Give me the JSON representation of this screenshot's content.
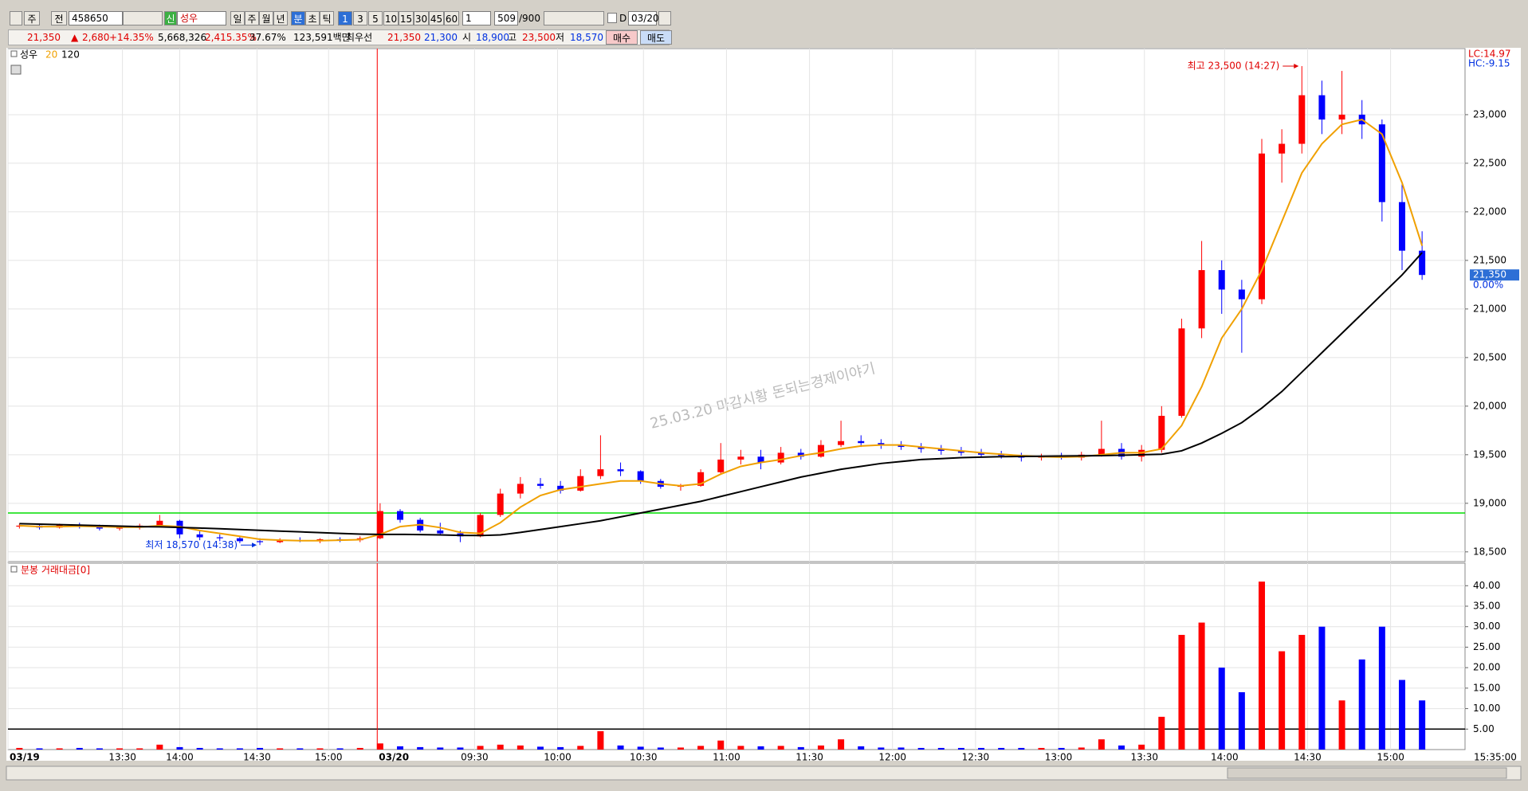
{
  "toolbar": {
    "market": "주",
    "mode": "전",
    "code": "458650",
    "badge": "신",
    "name": "성우",
    "periods": [
      "일",
      "주",
      "월",
      "년",
      "분",
      "초",
      "틱"
    ],
    "intervals": [
      "1",
      "3",
      "5",
      "10",
      "15",
      "30",
      "45",
      "60"
    ],
    "unit": "1",
    "count": "509",
    "max": "/900",
    "d_label": "D",
    "date": "03/20"
  },
  "quote": {
    "price": "21,350",
    "arrow": "▲",
    "change": "2,680",
    "change_pct": "+14.35%",
    "volume": "5,668,326",
    "volume_ratio": "2,415.35%",
    "turnover": "37.67%",
    "amount": "123,591백만",
    "best_label": "최우선",
    "ask": "21,350",
    "bid": "21,300",
    "open_label": "시",
    "open": "18,900",
    "high_label": "고",
    "high": "23,500",
    "low_label": "저",
    "low": "18,570",
    "buy": "매수",
    "sell": "매도"
  },
  "chart_data": [
    {
      "type": "candlestick",
      "name": "성우",
      "up_color": "#ff0000",
      "down_color": "#0000ff",
      "x": [
        4,
        11,
        18,
        25,
        32,
        39,
        46,
        53,
        60,
        67,
        74,
        81,
        88,
        95,
        102,
        109,
        116,
        123,
        130,
        137,
        144,
        151,
        158,
        165,
        172,
        179,
        186,
        193,
        200,
        207,
        214,
        221,
        228,
        235,
        242,
        249,
        256,
        263,
        270,
        277,
        284,
        291,
        298,
        305,
        312,
        319,
        326,
        333,
        340,
        347,
        354,
        361,
        368,
        375,
        382,
        389,
        396,
        403,
        410,
        417,
        424,
        431,
        438,
        445,
        452,
        459,
        466,
        473,
        480,
        487,
        494
      ],
      "open": [
        18760,
        18770,
        18750,
        18780,
        18760,
        18740,
        18750,
        18770,
        18820,
        18680,
        18650,
        18640,
        18610,
        18600,
        18620,
        18610,
        18630,
        18620,
        18640,
        18920,
        18830,
        18720,
        18690,
        18660,
        18880,
        19100,
        19200,
        19180,
        19130,
        19280,
        19350,
        19330,
        19230,
        19170,
        19180,
        19320,
        19450,
        19480,
        19420,
        19520,
        19480,
        19600,
        19640,
        19620,
        19600,
        19580,
        19560,
        19540,
        19520,
        19500,
        19490,
        19470,
        19480,
        19470,
        19500,
        19560,
        19480,
        19550,
        19900,
        20800,
        21400,
        21200,
        21100,
        22600,
        22700,
        23200,
        22950,
        23000,
        22900,
        22100,
        21600
      ],
      "high": [
        18790,
        18780,
        18790,
        18800,
        18780,
        18770,
        18790,
        18880,
        18830,
        18720,
        18680,
        18660,
        18640,
        18640,
        18650,
        18640,
        18650,
        18660,
        19000,
        18940,
        18850,
        18800,
        18720,
        18900,
        19150,
        19270,
        19260,
        19230,
        19350,
        19700,
        19420,
        19340,
        19250,
        19200,
        19350,
        19620,
        19550,
        19550,
        19580,
        19560,
        19650,
        19850,
        19700,
        19660,
        19640,
        19620,
        19600,
        19580,
        19560,
        19540,
        19520,
        19510,
        19520,
        19530,
        19850,
        19620,
        19600,
        20000,
        20900,
        21700,
        21500,
        21300,
        22750,
        22850,
        23500,
        23350,
        23450,
        23150,
        22950,
        22300,
        21800
      ],
      "low": [
        18740,
        18730,
        18740,
        18740,
        18720,
        18720,
        18730,
        18760,
        18640,
        18620,
        18610,
        18590,
        18570,
        18590,
        18600,
        18590,
        18600,
        18600,
        18630,
        18800,
        18700,
        18670,
        18600,
        18650,
        18860,
        19050,
        19150,
        19100,
        19120,
        19250,
        19280,
        19200,
        19150,
        19130,
        19170,
        19300,
        19400,
        19350,
        19400,
        19450,
        19470,
        19580,
        19580,
        19560,
        19550,
        19520,
        19500,
        19490,
        19480,
        19460,
        19430,
        19440,
        19450,
        19440,
        19480,
        19450,
        19430,
        19520,
        19880,
        20700,
        20950,
        20550,
        21050,
        22300,
        22600,
        22800,
        22800,
        22750,
        21900,
        21400,
        21300
      ],
      "close": [
        18770,
        18750,
        18780,
        18760,
        18740,
        18750,
        18770,
        18820,
        18680,
        18650,
        18640,
        18610,
        18600,
        18620,
        18610,
        18630,
        18620,
        18640,
        18920,
        18830,
        18720,
        18690,
        18660,
        18880,
        19100,
        19200,
        19180,
        19130,
        19280,
        19350,
        19330,
        19230,
        19170,
        19180,
        19320,
        19450,
        19480,
        19420,
        19520,
        19480,
        19600,
        19640,
        19620,
        19600,
        19580,
        19560,
        19540,
        19520,
        19500,
        19490,
        19470,
        19480,
        19470,
        19500,
        19560,
        19480,
        19550,
        19900,
        20800,
        21400,
        21200,
        21100,
        22600,
        22700,
        23200,
        22950,
        23000,
        22900,
        22100,
        21600,
        21350
      ],
      "series": [
        {
          "name": "20",
          "color": "#f0a000",
          "values": [
            18770,
            18760,
            18760,
            18765,
            18760,
            18755,
            18755,
            18770,
            18760,
            18720,
            18690,
            18660,
            18630,
            18620,
            18615,
            18615,
            18620,
            18625,
            18680,
            18760,
            18780,
            18750,
            18700,
            18690,
            18800,
            18960,
            19080,
            19140,
            19170,
            19200,
            19230,
            19230,
            19200,
            19180,
            19200,
            19300,
            19380,
            19420,
            19450,
            19490,
            19520,
            19560,
            19590,
            19600,
            19600,
            19580,
            19560,
            19540,
            19520,
            19505,
            19490,
            19480,
            19475,
            19480,
            19500,
            19520,
            19520,
            19560,
            19800,
            20200,
            20700,
            21000,
            21400,
            21900,
            22400,
            22700,
            22900,
            22950,
            22800,
            22300,
            21650
          ]
        },
        {
          "name": "120",
          "color": "#000000",
          "values": [
            18790,
            18785,
            18780,
            18775,
            18770,
            18765,
            18760,
            18758,
            18752,
            18745,
            18738,
            18730,
            18722,
            18714,
            18706,
            18698,
            18690,
            18683,
            18680,
            18680,
            18678,
            18675,
            18670,
            18668,
            18675,
            18700,
            18730,
            18760,
            18790,
            18820,
            18860,
            18900,
            18940,
            18980,
            19020,
            19070,
            19120,
            19170,
            19220,
            19270,
            19310,
            19350,
            19380,
            19410,
            19430,
            19450,
            19460,
            19470,
            19475,
            19480,
            19482,
            19484,
            19486,
            19488,
            19490,
            19495,
            19500,
            19505,
            19540,
            19620,
            19720,
            19830,
            19980,
            20150,
            20350,
            20550,
            20750,
            20950,
            21150,
            21350,
            21580
          ]
        }
      ],
      "xlim": [
        0,
        509
      ],
      "ylim": [
        18400,
        23680
      ],
      "yticks": [
        {
          "value": 18500,
          "label": "18,500"
        },
        {
          "value": 19000,
          "label": "19,000"
        },
        {
          "value": 19500,
          "label": "19,500"
        },
        {
          "value": 20000,
          "label": "20,000"
        },
        {
          "value": 20500,
          "label": "20,500"
        },
        {
          "value": 21000,
          "label": "21,000"
        },
        {
          "value": 21500,
          "label": "21,500"
        },
        {
          "value": 22000,
          "label": "22,000"
        },
        {
          "value": 22500,
          "label": "22,500"
        },
        {
          "value": 23000,
          "label": "23,000"
        }
      ],
      "grid": true,
      "hlines": [
        {
          "value": 18900,
          "color": "#00dd00"
        }
      ],
      "vlines": [
        {
          "value": 129,
          "color": "#ff0000"
        }
      ],
      "high_label": "최고 23,500 (14:27)",
      "low_label": "최저 18,570 (14:38)",
      "watermark": "25.03.20 마감시황 돈되는경제이야기",
      "right_labels": [
        "LC:14.97",
        "HC:-9.15"
      ],
      "last_label": "21,350",
      "last_change_label": "0.00%"
    },
    {
      "type": "bar",
      "title": "분봉 거래대금[0]",
      "x": [
        4,
        11,
        18,
        25,
        32,
        39,
        46,
        53,
        60,
        67,
        74,
        81,
        88,
        95,
        102,
        109,
        116,
        123,
        130,
        137,
        144,
        151,
        158,
        165,
        172,
        179,
        186,
        193,
        200,
        207,
        214,
        221,
        228,
        235,
        242,
        249,
        256,
        263,
        270,
        277,
        284,
        291,
        298,
        305,
        312,
        319,
        326,
        333,
        340,
        347,
        354,
        361,
        368,
        375,
        382,
        389,
        396,
        403,
        410,
        417,
        424,
        431,
        438,
        445,
        452,
        459,
        466,
        473,
        480,
        487,
        494
      ],
      "values": [
        0.4,
        0.3,
        0.3,
        0.4,
        0.3,
        0.3,
        0.3,
        1.2,
        0.6,
        0.4,
        0.3,
        0.3,
        0.4,
        0.3,
        0.3,
        0.3,
        0.3,
        0.4,
        1.5,
        0.8,
        0.6,
        0.5,
        0.5,
        0.9,
        1.2,
        1.0,
        0.7,
        0.6,
        0.9,
        4.5,
        1.0,
        0.7,
        0.5,
        0.5,
        0.9,
        2.2,
        0.9,
        0.8,
        0.9,
        0.6,
        1.0,
        2.5,
        0.8,
        0.5,
        0.5,
        0.4,
        0.4,
        0.4,
        0.4,
        0.4,
        0.4,
        0.4,
        0.4,
        0.5,
        2.5,
        1.0,
        1.2,
        8.0,
        28.0,
        31.0,
        20.0,
        14.0,
        41.0,
        24.0,
        28.0,
        30.0,
        12.0,
        22.0,
        30.0,
        17.0,
        12.0
      ],
      "xlim": [
        0,
        509
      ],
      "ylim": [
        0,
        45.5
      ],
      "yticks": [
        {
          "value": 5,
          "label": "5.00"
        },
        {
          "value": 10,
          "label": "10.00"
        },
        {
          "value": 15,
          "label": "15.00"
        },
        {
          "value": 20,
          "label": "20.00"
        },
        {
          "value": 25,
          "label": "25.00"
        },
        {
          "value": 30,
          "label": "30.00"
        },
        {
          "value": 35,
          "label": "35.00"
        },
        {
          "value": 40,
          "label": "40.00"
        }
      ],
      "xticks": [
        {
          "value": 0,
          "label": "03/19"
        },
        {
          "value": 40,
          "label": "13:30"
        },
        {
          "value": 60,
          "label": "14:00"
        },
        {
          "value": 87,
          "label": "14:30"
        },
        {
          "value": 112,
          "label": "15:00"
        },
        {
          "value": 129,
          "label": "03/20"
        },
        {
          "value": 163,
          "label": "09:30"
        },
        {
          "value": 192,
          "label": "10:00"
        },
        {
          "value": 222,
          "label": "10:30"
        },
        {
          "value": 251,
          "label": "11:00"
        },
        {
          "value": 280,
          "label": "11:30"
        },
        {
          "value": 309,
          "label": "12:00"
        },
        {
          "value": 338,
          "label": "12:30"
        },
        {
          "value": 367,
          "label": "13:00"
        },
        {
          "value": 397,
          "label": "13:30"
        },
        {
          "value": 425,
          "label": "14:00"
        },
        {
          "value": 454,
          "label": "14:30"
        },
        {
          "value": 483,
          "label": "15:00"
        }
      ],
      "axis_end_label": "15:35:00",
      "grid": true,
      "hlines": [
        {
          "value": 5,
          "color": "#000000"
        }
      ]
    }
  ]
}
